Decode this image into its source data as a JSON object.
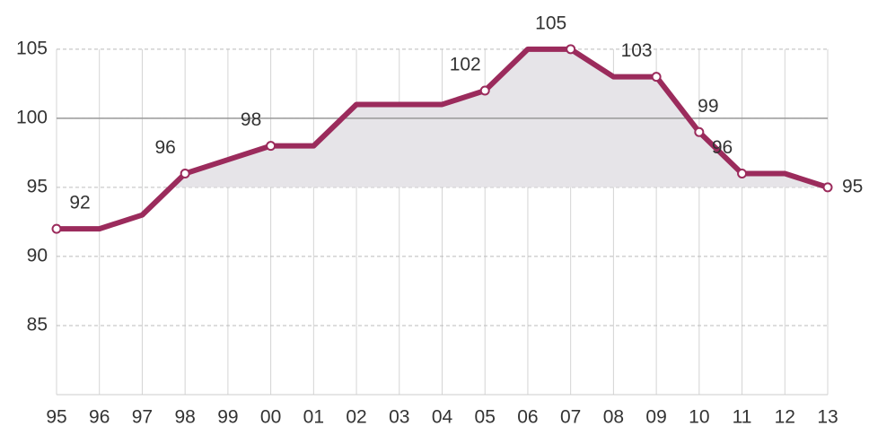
{
  "chart_data": {
    "type": "line",
    "categories": [
      "95",
      "96",
      "97",
      "98",
      "99",
      "00",
      "01",
      "02",
      "03",
      "04",
      "05",
      "06",
      "07",
      "08",
      "09",
      "10",
      "11",
      "12",
      "13"
    ],
    "values": [
      92,
      92,
      93,
      96,
      97,
      98,
      98,
      101,
      101,
      101,
      102,
      105,
      105,
      103,
      103,
      99,
      96,
      96,
      95
    ],
    "value_labels": [
      "92",
      null,
      null,
      "96",
      null,
      "98",
      null,
      null,
      null,
      null,
      "102",
      null,
      "105",
      null,
      "103",
      "99",
      "96",
      null,
      "95"
    ],
    "color": "#9b2b5c",
    "fill_color": "#e6e4e8",
    "fill_base": 95,
    "reference_line": 100,
    "ylim": [
      80,
      107
    ],
    "yticks": [
      85,
      90,
      95,
      100,
      105
    ],
    "grid": true
  }
}
